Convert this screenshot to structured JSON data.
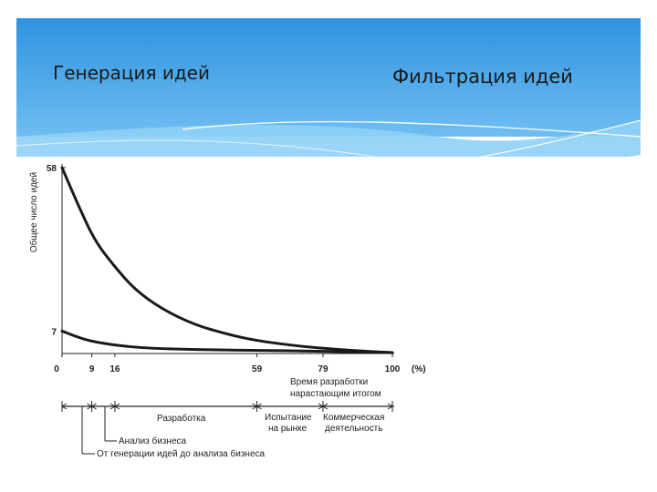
{
  "slide": {
    "title_left": "Генерация идей",
    "title_right": "Фильтрация идей"
  },
  "chart_data": {
    "type": "line",
    "ylabel": "Общее число идей",
    "xlabel": "Время разработки нарастающим итогом",
    "x_unit": "(%)",
    "xlim": [
      0,
      100
    ],
    "ylim": [
      0,
      58
    ],
    "y_ticks": [
      {
        "value": 58,
        "label": "58"
      },
      {
        "value": 7,
        "label": "7"
      }
    ],
    "x_ticks": [
      {
        "value": 0,
        "label": "0"
      },
      {
        "value": 9,
        "label": "9"
      },
      {
        "value": 16,
        "label": "16"
      },
      {
        "value": 59,
        "label": "59"
      },
      {
        "value": 79,
        "label": "79"
      },
      {
        "value": 100,
        "label": "100"
      }
    ],
    "series": [
      {
        "values": [
          {
            "x": 0,
            "y": 58
          },
          {
            "x": 5,
            "y": 46
          },
          {
            "x": 10,
            "y": 35
          },
          {
            "x": 16,
            "y": 27
          },
          {
            "x": 22,
            "y": 20
          },
          {
            "x": 30,
            "y": 14
          },
          {
            "x": 40,
            "y": 9
          },
          {
            "x": 50,
            "y": 6
          },
          {
            "x": 59,
            "y": 4
          },
          {
            "x": 70,
            "y": 2.5
          },
          {
            "x": 79,
            "y": 1.6
          },
          {
            "x": 90,
            "y": 0.8
          },
          {
            "x": 100,
            "y": 0.3
          }
        ]
      },
      {
        "values": [
          {
            "x": 0,
            "y": 7
          },
          {
            "x": 5,
            "y": 5
          },
          {
            "x": 9,
            "y": 3.8
          },
          {
            "x": 16,
            "y": 2.6
          },
          {
            "x": 25,
            "y": 1.7
          },
          {
            "x": 40,
            "y": 1.2
          },
          {
            "x": 59,
            "y": 1.0
          },
          {
            "x": 79,
            "y": 0.7
          },
          {
            "x": 100,
            "y": 0.3
          }
        ]
      }
    ],
    "phases": {
      "development": "Разработка",
      "market_test_1": "Испытание",
      "market_test_2": "на рынке",
      "commercial_1": "Коммерческая",
      "commercial_2": "деятельность",
      "business_analysis": "Анализ бизнеса",
      "generation_to_analysis": "От генерации идей до анализа бизнеса"
    },
    "grid": false,
    "line_color": "#1a1a1a"
  }
}
